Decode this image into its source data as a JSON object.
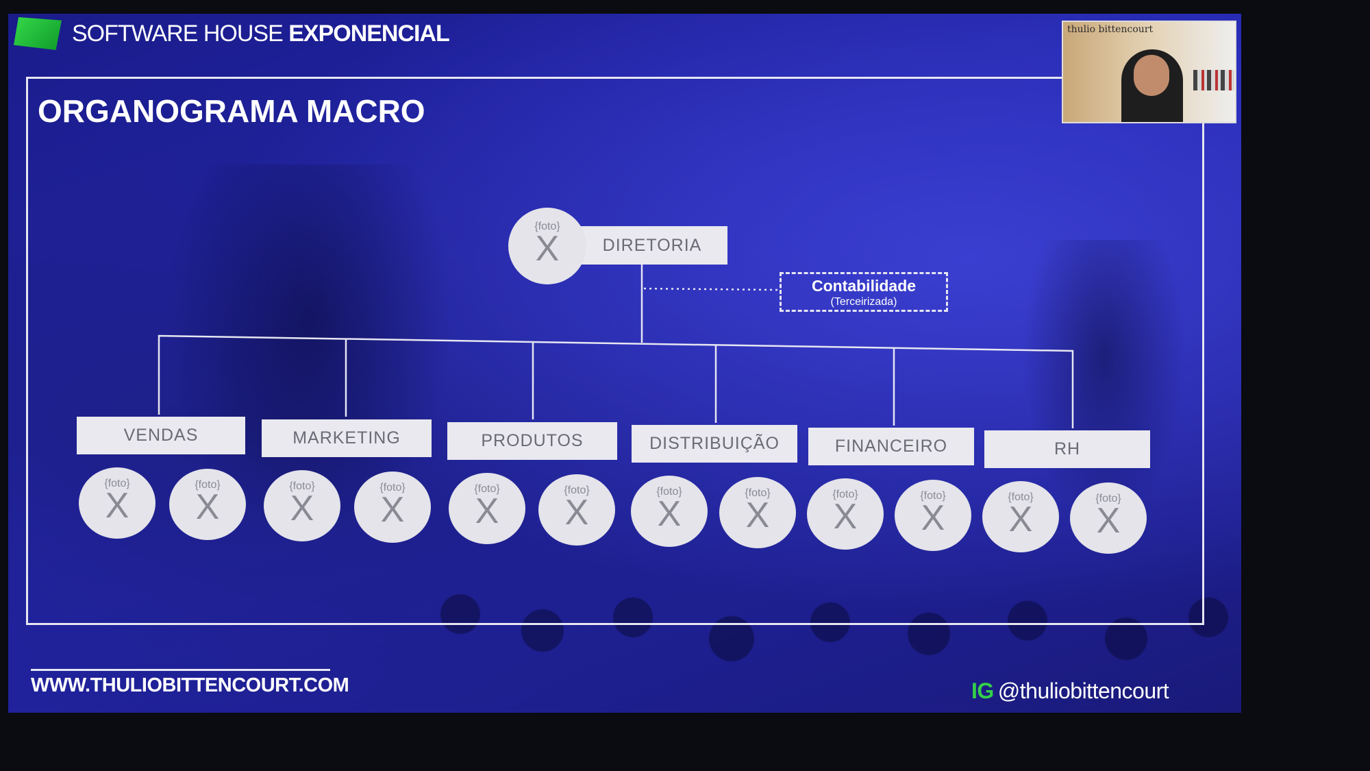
{
  "brand": {
    "light": "SOFTWARE HOUSE",
    "bold": "EXPONENCIAL"
  },
  "slide_title": "ORGANOGRAMA MACRO",
  "webcam_sign": "thulio bittencourt",
  "director": {
    "label": "DIRETORIA",
    "photo_placeholder": "{foto}",
    "photo_mark": "X"
  },
  "contabilidade": {
    "title": "Contabilidade",
    "subtitle": "(Terceirizada)"
  },
  "departments": [
    {
      "label": "VENDAS"
    },
    {
      "label": "MARKETING"
    },
    {
      "label": "PRODUTOS"
    },
    {
      "label": "DISTRIBUIÇÃO"
    },
    {
      "label": "FINANCEIRO"
    },
    {
      "label": "RH"
    }
  ],
  "photo_slot": {
    "placeholder": "{foto}",
    "mark": "X"
  },
  "footer": {
    "website": "WWW.THULIOBITTENCOURT.COM",
    "ig_tag": "IG",
    "ig_handle": "@thuliobittencourt"
  },
  "colors": {
    "background": "#2326b0",
    "accent_green": "#33d04a",
    "box": "#e9e9ef",
    "text_gray": "#6b6b76"
  }
}
